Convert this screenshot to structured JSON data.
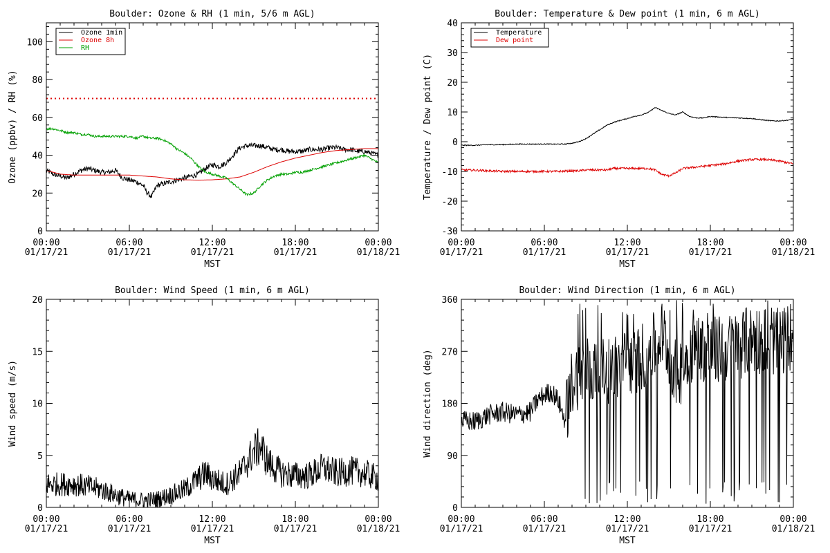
{
  "colors": {
    "black": "#000000",
    "red": "#dd0000",
    "green": "#00a000",
    "axis": "#000000"
  },
  "chart_data": [
    {
      "id": "ozone-rh",
      "type": "line",
      "title": "Boulder: Ozone & RH (1 min, 5/6 m AGL)",
      "xlabel": "MST",
      "ylabel": "Ozone (ppbv) / RH (%)",
      "xlim": [
        0,
        24
      ],
      "ylim": [
        0,
        110
      ],
      "yticks": [
        0,
        20,
        40,
        60,
        80,
        100
      ],
      "xtick_times": [
        "00:00",
        "06:00",
        "12:00",
        "18:00",
        "00:00"
      ],
      "xtick_dates": [
        "01/17/21",
        "01/17/21",
        "01/17/21",
        "01/17/21",
        "01/18/21"
      ],
      "legend": "top-left",
      "reference_line": {
        "y": 70,
        "color": "red",
        "style": "dotted"
      },
      "series": [
        {
          "name": "Ozone 1min",
          "color": "black",
          "noise": 1.4,
          "x": [
            0,
            0.5,
            1,
            1.5,
            2,
            2.5,
            3,
            3.5,
            4,
            4.5,
            5,
            5.5,
            6,
            6.5,
            7,
            7.3,
            7.6,
            8,
            8.5,
            9,
            9.5,
            10,
            10.5,
            11,
            11.5,
            12,
            12.5,
            13,
            13.5,
            14,
            14.5,
            15,
            15.5,
            16,
            16.5,
            17,
            17.5,
            18,
            18.5,
            19,
            19.5,
            20,
            20.5,
            21,
            21.5,
            22,
            22.5,
            23,
            23.5,
            24
          ],
          "y": [
            32,
            30,
            29,
            28,
            30,
            32,
            33,
            32,
            31,
            31,
            32,
            28,
            27,
            26,
            24,
            20,
            18,
            24,
            25,
            26,
            27,
            28,
            29,
            30,
            33,
            35,
            34,
            36,
            40,
            44,
            45,
            45,
            45,
            44,
            43,
            43,
            42,
            42,
            42,
            43,
            43,
            43,
            44,
            44,
            43,
            43,
            42,
            42,
            41,
            40
          ]
        },
        {
          "name": "Ozone 8h",
          "color": "red",
          "noise": 0,
          "x": [
            0,
            1,
            2,
            3,
            4,
            5,
            6,
            7,
            8,
            9,
            10,
            11,
            12,
            13,
            14,
            15,
            16,
            17,
            18,
            19,
            20,
            21,
            22,
            23,
            24
          ],
          "y": [
            32,
            30,
            29.5,
            29.5,
            29.5,
            29.5,
            29.5,
            29,
            28.5,
            27.5,
            27,
            26.8,
            27,
            27.5,
            28.5,
            31,
            34,
            36.5,
            38.5,
            40,
            41.5,
            42.5,
            43,
            43.5,
            43.5
          ]
        },
        {
          "name": "RH",
          "color": "green",
          "noise": 0.6,
          "x": [
            0,
            0.5,
            1,
            1.5,
            2,
            2.5,
            3,
            3.5,
            4,
            4.5,
            5,
            5.5,
            6,
            6.5,
            7,
            7.5,
            8,
            8.5,
            9,
            9.5,
            10,
            10.5,
            11,
            11.5,
            12,
            12.5,
            13,
            13.5,
            14,
            14.5,
            15,
            15.5,
            16,
            16.5,
            17,
            17.5,
            18,
            18.5,
            19,
            19.5,
            20,
            20.5,
            21,
            21.5,
            22,
            22.5,
            23,
            23.5,
            24
          ],
          "y": [
            54,
            54,
            53,
            52,
            52,
            51,
            51,
            50,
            50,
            50,
            50,
            50,
            50,
            49,
            50,
            49,
            49,
            48,
            46,
            43,
            41,
            38,
            34,
            31,
            30,
            29,
            28,
            25,
            22,
            19,
            20,
            24,
            27,
            29,
            30,
            30,
            31,
            31,
            32,
            33,
            34,
            35,
            36,
            37,
            38,
            39,
            40,
            38,
            36
          ]
        }
      ]
    },
    {
      "id": "temp-dew",
      "type": "line",
      "title": "Boulder: Temperature & Dew point (1 min, 6 m AGL)",
      "xlabel": "MST",
      "ylabel": "Temperature / Dew point (C)",
      "xlim": [
        0,
        24
      ],
      "ylim": [
        -30,
        40
      ],
      "yticks": [
        -30,
        -20,
        -10,
        0,
        10,
        20,
        30,
        40
      ],
      "xtick_times": [
        "00:00",
        "06:00",
        "12:00",
        "18:00",
        "00:00"
      ],
      "xtick_dates": [
        "01/17/21",
        "01/17/21",
        "01/17/21",
        "01/17/21",
        "01/18/21"
      ],
      "legend": "top-left",
      "series": [
        {
          "name": "Temperature",
          "color": "black",
          "noise": 0.15,
          "x": [
            0,
            1,
            2,
            3,
            4,
            5,
            6,
            7,
            7.5,
            8,
            8.5,
            9,
            9.5,
            10,
            10.5,
            11,
            11.5,
            12,
            12.5,
            13,
            13.5,
            14,
            14.5,
            15,
            15.5,
            16,
            16.5,
            17,
            17.5,
            18,
            19,
            20,
            21,
            22,
            22.5,
            23,
            23.5,
            24
          ],
          "y": [
            -1.2,
            -1.2,
            -1,
            -1,
            -0.8,
            -0.8,
            -0.8,
            -0.8,
            -0.8,
            -0.5,
            0,
            1,
            2.5,
            4,
            5.5,
            6.5,
            7.2,
            7.8,
            8.5,
            9,
            9.8,
            11.5,
            10.5,
            9.5,
            9,
            10,
            8.5,
            8,
            8,
            8.5,
            8.2,
            8,
            7.8,
            7.2,
            7,
            7,
            7.2,
            7.5
          ]
        },
        {
          "name": "Dew point",
          "color": "red",
          "noise": 0.35,
          "x": [
            0,
            1,
            2,
            3,
            4,
            5,
            6,
            7,
            8,
            8.5,
            9,
            9.5,
            10,
            10.5,
            11,
            11.5,
            12,
            12.5,
            13,
            13.5,
            14,
            14.5,
            15,
            15.5,
            16,
            17,
            18,
            19,
            20,
            21,
            22,
            23,
            24
          ],
          "y": [
            -9.5,
            -9.6,
            -9.8,
            -10,
            -10,
            -10,
            -10,
            -10,
            -9.8,
            -9.8,
            -9.5,
            -9.5,
            -9.5,
            -9.5,
            -9,
            -9,
            -9,
            -9,
            -9,
            -9,
            -9.5,
            -11,
            -11.5,
            -10.5,
            -9,
            -8.5,
            -8,
            -7.5,
            -6.5,
            -6,
            -6,
            -6.5,
            -7.5
          ]
        }
      ]
    },
    {
      "id": "wind-speed",
      "type": "line",
      "title": "Boulder: Wind Speed (1 min, 6 m AGL)",
      "xlabel": "MST",
      "ylabel": "Wind speed (m/s)",
      "xlim": [
        0,
        24
      ],
      "ylim": [
        0,
        20
      ],
      "yticks": [
        0,
        5,
        10,
        15,
        20
      ],
      "xtick_times": [
        "00:00",
        "06:00",
        "12:00",
        "18:00",
        "00:00"
      ],
      "xtick_dates": [
        "01/17/21",
        "01/17/21",
        "01/17/21",
        "01/17/21",
        "01/18/21"
      ],
      "series": [
        {
          "name": "",
          "color": "black",
          "noise": 1.4,
          "x": [
            0,
            1,
            2,
            3,
            4,
            5,
            6,
            7,
            8,
            9,
            10,
            11,
            11.5,
            12,
            13,
            14,
            15,
            15.5,
            16,
            17,
            18,
            19,
            20,
            21,
            22,
            23,
            24
          ],
          "y": [
            2,
            2,
            2,
            1.8,
            1.5,
            1,
            0.6,
            0.5,
            0.6,
            1,
            1.5,
            2.5,
            3,
            2.5,
            2,
            3,
            5,
            5.5,
            4,
            3,
            2.8,
            2.8,
            3.5,
            3,
            3.2,
            3,
            2.5
          ]
        }
      ]
    },
    {
      "id": "wind-dir",
      "type": "line",
      "title": "Boulder: Wind Direction (1 min, 6 m AGL)",
      "xlabel": "MST",
      "ylabel": "Wind direction (deg)",
      "xlim": [
        0,
        24
      ],
      "ylim": [
        0,
        360
      ],
      "yticks": [
        0,
        90,
        180,
        270,
        360
      ],
      "xtick_times": [
        "00:00",
        "06:00",
        "12:00",
        "18:00",
        "00:00"
      ],
      "xtick_dates": [
        "01/17/21",
        "01/17/21",
        "01/17/21",
        "01/17/21",
        "01/18/21"
      ],
      "series": [
        {
          "name": "",
          "color": "black",
          "noise": 25,
          "x": [
            0,
            1,
            2,
            3,
            4,
            5,
            5.5,
            6,
            6.5,
            7,
            7.5,
            8,
            9,
            10,
            11,
            12,
            13,
            14,
            14.5,
            15,
            15.5,
            16,
            16.5,
            17,
            18,
            19,
            20,
            21,
            22,
            23,
            24
          ],
          "y": [
            150,
            148,
            160,
            165,
            160,
            165,
            185,
            195,
            200,
            185,
            150,
            220,
            240,
            230,
            240,
            250,
            260,
            280,
            300,
            270,
            230,
            240,
            270,
            280,
            270,
            275,
            280,
            290,
            290,
            285,
            300
          ]
        }
      ]
    }
  ]
}
